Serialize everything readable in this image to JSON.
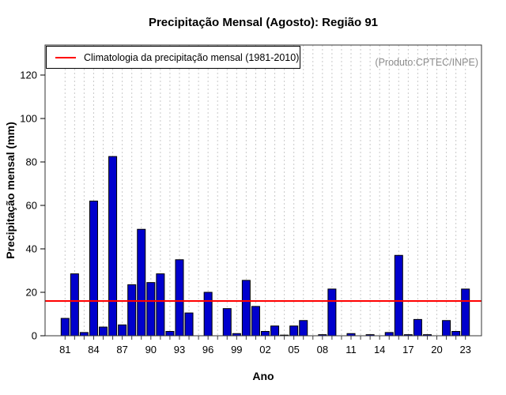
{
  "title": "Precipitação Mensal (Agosto): Região 91",
  "product_note": "(Produto:CPTEC/INPE)",
  "legend": {
    "label": "Climatologia da precipitação mensal (1981-2010)"
  },
  "chart_data": {
    "type": "bar",
    "title": "Precipitação Mensal (Agosto): Região 91",
    "xlabel": "Ano",
    "ylabel": "Precipitação mensal (mm)",
    "x": [
      "81",
      "82",
      "83",
      "84",
      "85",
      "86",
      "87",
      "88",
      "89",
      "90",
      "91",
      "92",
      "93",
      "94",
      "95",
      "96",
      "97",
      "98",
      "99",
      "00",
      "01",
      "02",
      "03",
      "04",
      "05",
      "06",
      "07",
      "08",
      "09",
      "10",
      "11",
      "12",
      "13",
      "14",
      "15",
      "16",
      "17",
      "18",
      "19",
      "20",
      "21",
      "22",
      "23"
    ],
    "values": [
      8,
      28.5,
      1.5,
      62,
      4,
      82.5,
      5,
      23.5,
      49,
      24.5,
      28.5,
      2,
      35,
      10.5,
      0,
      20,
      0,
      12.5,
      1,
      25.5,
      13.5,
      2,
      4.5,
      0.3,
      4.5,
      7,
      0,
      0.5,
      21.5,
      0,
      1,
      0,
      0.5,
      0,
      1.5,
      37,
      0.5,
      7.5,
      0.5,
      0,
      7,
      2,
      21.5
    ],
    "climatology_line": {
      "label": "Climatologia da precipitação mensal (1981-2010)",
      "value": 16,
      "color": "#ff0000"
    },
    "yticks": [
      0,
      20,
      40,
      60,
      80,
      100,
      120
    ],
    "ylim": [
      0,
      133
    ],
    "xtick_label_every": 3,
    "grid": "vertical-dashed",
    "legend_position": "top-left",
    "bar_color": "#0000cd",
    "bar_border": "#000000",
    "grid_color": "#c9c9c9",
    "product_note": "(Produto:CPTEC/INPE)"
  }
}
